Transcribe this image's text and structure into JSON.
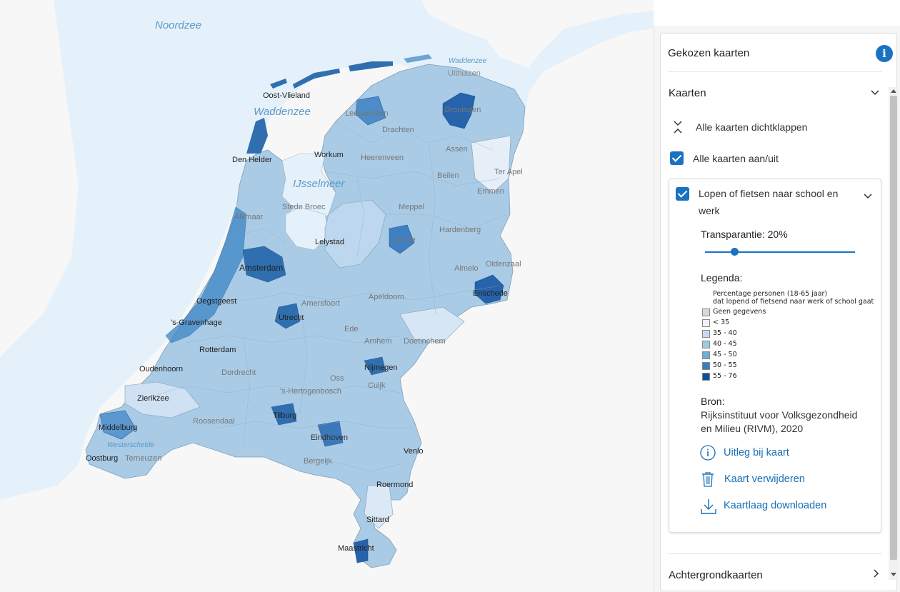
{
  "map": {
    "labels": {
      "noordzee": "Noordzee",
      "waddenzee": "Waddenzee",
      "waddenzee_small": "Waddenzee",
      "ijsselmeer": "IJsselmeer",
      "westerschelde": "Westerschelde",
      "oost_vlieland": "Oost-Vlieland",
      "den_helder": "Den Helder",
      "leeuwarden": "Leeuwarden",
      "drachten": "Drachten",
      "heerenveen": "Heerenveen",
      "workum": "Workum",
      "groningen": "Groningen",
      "uithuizen": "Uithuizen",
      "assen": "Assen",
      "emmen": "Emmen",
      "ter_apel": "Ter Apel",
      "beilen": "Beilen",
      "stede_broec": "Stede Broec",
      "alkmaar": "Alkmaar",
      "lelystad": "Lelystad",
      "meppel": "Meppel",
      "zwolle": "Zwolle",
      "hardenberg": "Hardenberg",
      "almelo": "Almelo",
      "oldenzaal": "Oldenzaal",
      "enschede": "Enschede",
      "amsterdam": "Amsterdam",
      "apeldoorn": "Apeldoorn",
      "amersfoort": "Amersfoort",
      "utrecht": "Utrecht",
      "oegstgeest": "Oegstgeest",
      "den_haag": "'s-Gravenhage",
      "rotterdam": "Rotterdam",
      "ede": "Ede",
      "arnhem": "Arnhem",
      "doetinchem": "Doetinchem",
      "nijmegen": "Nijmegen",
      "dordrecht": "Dordrecht",
      "oudenhoorn": "Oudenhoorn",
      "zierikzee": "Zierikzee",
      "oss": "Oss",
      "den_bosch": "'s-Hertogenbosch",
      "cuijk": "Cuijk",
      "tilburg": "Tilburg",
      "roosendaal": "Roosendaal",
      "middelburg": "Middelburg",
      "eindhoven": "Eindhoven",
      "venlo": "Venlo",
      "oostburg": "Oostburg",
      "terneuzen": "Terneuzen",
      "bergeijk": "Bergeijk",
      "roermond": "Roermond",
      "sittard": "Sittard",
      "maastricht": "Maastricht"
    }
  },
  "panel": {
    "header": "Gekozen kaarten",
    "info_icon": "i",
    "section_maps": "Kaarten",
    "collapse_all": "Alle kaarten dichtklappen",
    "toggle_all": "Alle kaarten aan/uit",
    "layer": {
      "title_line1": "Lopen of fietsen naar school en",
      "title_line2": "werk",
      "transparency_label": "Transparantie:",
      "transparency_value": "20%",
      "transparency_fraction": 0.2,
      "legend_label": "Legenda:",
      "legend_title_line1": "Percentage personen (18-65 jaar)",
      "legend_title_line2": "dat lopend of fietsend naar werk of school gaat",
      "legend_items": [
        {
          "label": "Geen gegevens",
          "color": "#d9d9d9"
        },
        {
          "label": "< 35",
          "color": "#eff3ff"
        },
        {
          "label": "35 - 40",
          "color": "#c6dbef"
        },
        {
          "label": "40 - 45",
          "color": "#9ecae1"
        },
        {
          "label": "45 - 50",
          "color": "#6baed6"
        },
        {
          "label": "50 - 55",
          "color": "#3182bd"
        },
        {
          "label": "55 - 76",
          "color": "#08519c"
        }
      ],
      "source_label": "Bron:",
      "source_line1": "Rijksinstituut voor Volksgezondheid",
      "source_line2": "en Milieu (RIVM), 2020",
      "actions": {
        "explain": "Uitleg bij kaart",
        "remove": "Kaart verwijderen",
        "download": "Kaartlaag downloaden"
      }
    },
    "section_background": "Achtergrondkaarten"
  },
  "colors": {
    "accent": "#1a73c2",
    "sea": "#e5f1fa",
    "land_bg": "#f7f7f7"
  }
}
